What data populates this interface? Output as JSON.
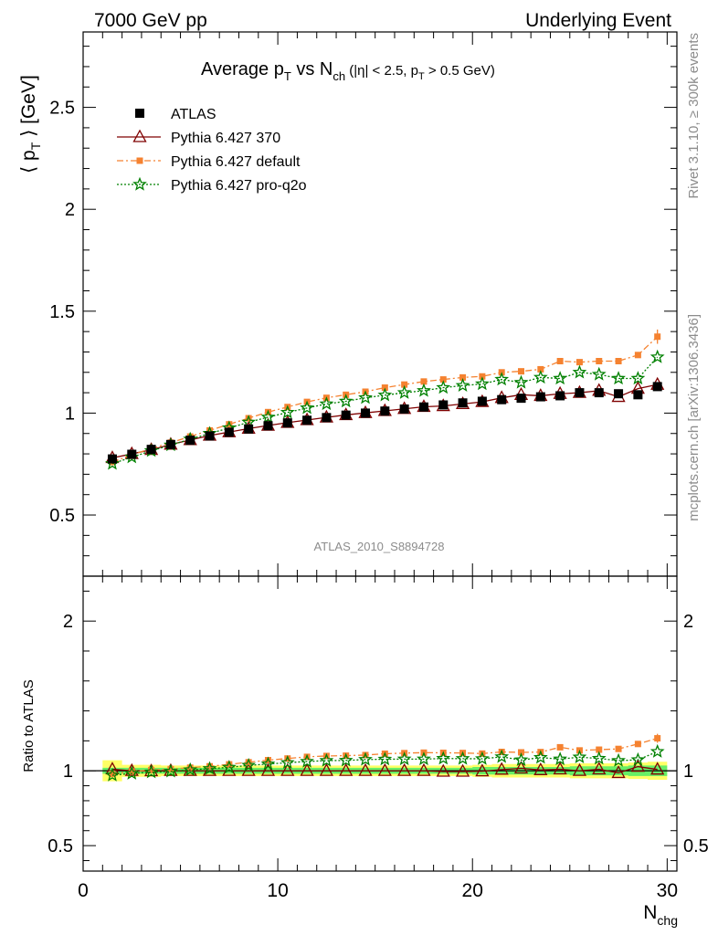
{
  "header": {
    "left": "7000 GeV pp",
    "right": "Underlying Event"
  },
  "side_text": {
    "rivet": "Rivet 3.1.10, ≥ 300k events",
    "mcplots": "mcplots.cern.ch [arXiv:1306.3436]"
  },
  "chart_data": [
    {
      "type": "scatter",
      "panel": "main",
      "title": {
        "base": "Average p",
        "base_sub": "T",
        "mid": " vs N",
        "mid_sub": "ch",
        "cut1": " (|η| < 2.5, p",
        "cut_sub": "T",
        "cut2": " > 0.5 GeV)"
      },
      "ylabel": {
        "left": "⟨ p",
        "sub": "T",
        "right": " ⟩ [GeV]"
      },
      "watermark": "ATLAS_2010_S8894728",
      "xlim": [
        0,
        30.5
      ],
      "ylim": [
        0.2,
        2.87
      ],
      "y_ticks": [
        "0.5",
        "1",
        "1.5",
        "2",
        "2.5"
      ],
      "legend_position": "top-left",
      "x": [
        1.5,
        2.5,
        3.5,
        4.5,
        5.5,
        6.5,
        7.5,
        8.5,
        9.5,
        10.5,
        11.5,
        12.5,
        13.5,
        14.5,
        15.5,
        16.5,
        17.5,
        18.5,
        19.5,
        20.5,
        21.5,
        22.5,
        23.5,
        24.5,
        25.5,
        26.5,
        27.5,
        28.5,
        29.5
      ],
      "series": [
        {
          "name": "ATLAS",
          "color": "#000000",
          "marker": "square",
          "values": [
            0.775,
            0.798,
            0.822,
            0.846,
            0.867,
            0.888,
            0.906,
            0.922,
            0.938,
            0.952,
            0.965,
            0.978,
            0.99,
            1.0,
            1.01,
            1.02,
            1.03,
            1.04,
            1.05,
            1.058,
            1.066,
            1.073,
            1.08,
            1.085,
            1.1,
            1.1,
            1.095,
            1.09,
            1.13
          ]
        },
        {
          "name": "Pythia 6.427 370",
          "color": "#7f0000",
          "marker": "triangle",
          "values": [
            0.78,
            0.8,
            0.82,
            0.846,
            0.868,
            0.89,
            0.907,
            0.924,
            0.939,
            0.953,
            0.966,
            0.979,
            0.991,
            1.001,
            1.011,
            1.021,
            1.031,
            1.035,
            1.045,
            1.055,
            1.075,
            1.09,
            1.085,
            1.095,
            1.1,
            1.11,
            1.08,
            1.12,
            1.14
          ]
        },
        {
          "name": "Pythia 6.427 default",
          "color": "#f58230",
          "marker": "square-small",
          "values": [
            0.76,
            0.795,
            0.826,
            0.855,
            0.885,
            0.915,
            0.945,
            0.975,
            1.005,
            1.03,
            1.055,
            1.075,
            1.09,
            1.105,
            1.125,
            1.14,
            1.155,
            1.165,
            1.175,
            1.18,
            1.2,
            1.205,
            1.215,
            1.255,
            1.25,
            1.255,
            1.255,
            1.285,
            1.375
          ]
        },
        {
          "name": "Pythia 6.427 pro-q2o",
          "color": "#008000",
          "marker": "star",
          "values": [
            0.752,
            0.784,
            0.815,
            0.843,
            0.872,
            0.9,
            0.927,
            0.955,
            0.98,
            1.003,
            1.025,
            1.045,
            1.058,
            1.075,
            1.088,
            1.1,
            1.11,
            1.125,
            1.135,
            1.143,
            1.165,
            1.15,
            1.175,
            1.17,
            1.2,
            1.19,
            1.17,
            1.17,
            1.275
          ]
        }
      ],
      "error_bar_last_point": {
        "series": "Pythia 6.427 default",
        "up": 1.41,
        "down": 1.34
      }
    },
    {
      "type": "scatter",
      "panel": "ratio",
      "ylabel": "Ratio to ATLAS",
      "xlabel": {
        "main": "N",
        "sub": "chg"
      },
      "xlim": [
        0,
        30.5
      ],
      "ylim": [
        0.33,
        2.3
      ],
      "x_ticks": [
        "0",
        "10",
        "20",
        "30"
      ],
      "y_ticks": [
        "0.5",
        "1",
        "2"
      ],
      "reference_line": 1,
      "band_colors": {
        "stat": "#66ee66",
        "syst": "#ffff66"
      },
      "band_halfwidth_stat": [
        0.02,
        0.02,
        0.02,
        0.02,
        0.02,
        0.02,
        0.02,
        0.02,
        0.02,
        0.02,
        0.02,
        0.02,
        0.02,
        0.02,
        0.02,
        0.02,
        0.02,
        0.02,
        0.02,
        0.025,
        0.025,
        0.025,
        0.025,
        0.025,
        0.03,
        0.03,
        0.03,
        0.035,
        0.035
      ],
      "band_halfwidth_syst": [
        0.07,
        0.04,
        0.04,
        0.035,
        0.035,
        0.035,
        0.035,
        0.035,
        0.035,
        0.035,
        0.035,
        0.035,
        0.035,
        0.035,
        0.035,
        0.035,
        0.035,
        0.035,
        0.035,
        0.04,
        0.045,
        0.045,
        0.045,
        0.045,
        0.05,
        0.05,
        0.05,
        0.055,
        0.06
      ],
      "series": [
        {
          "name": "Pythia 6.427 370",
          "values": [
            1.01,
            1.0,
            0.998,
            1.0,
            1.0,
            1.0,
            1.0,
            1.0,
            1.0,
            1.0,
            1.0,
            1.0,
            1.0,
            1.0,
            1.0,
            1.0,
            1.0,
            0.995,
            0.995,
            0.997,
            1.008,
            1.016,
            1.005,
            1.01,
            1.0,
            1.01,
            0.986,
            1.028,
            1.009
          ]
        },
        {
          "name": "Pythia 6.427 default",
          "values": [
            0.98,
            0.996,
            1.005,
            1.011,
            1.021,
            1.03,
            1.043,
            1.057,
            1.071,
            1.082,
            1.093,
            1.099,
            1.101,
            1.105,
            1.114,
            1.118,
            1.121,
            1.12,
            1.119,
            1.115,
            1.126,
            1.123,
            1.125,
            1.157,
            1.136,
            1.141,
            1.146,
            1.179,
            1.217
          ]
        },
        {
          "name": "Pythia 6.427 pro-q2o",
          "values": [
            0.97,
            0.982,
            0.991,
            0.996,
            1.006,
            1.014,
            1.023,
            1.036,
            1.045,
            1.054,
            1.062,
            1.068,
            1.069,
            1.075,
            1.077,
            1.078,
            1.078,
            1.082,
            1.081,
            1.08,
            1.093,
            1.072,
            1.088,
            1.078,
            1.091,
            1.082,
            1.068,
            1.073,
            1.128
          ]
        }
      ]
    }
  ]
}
